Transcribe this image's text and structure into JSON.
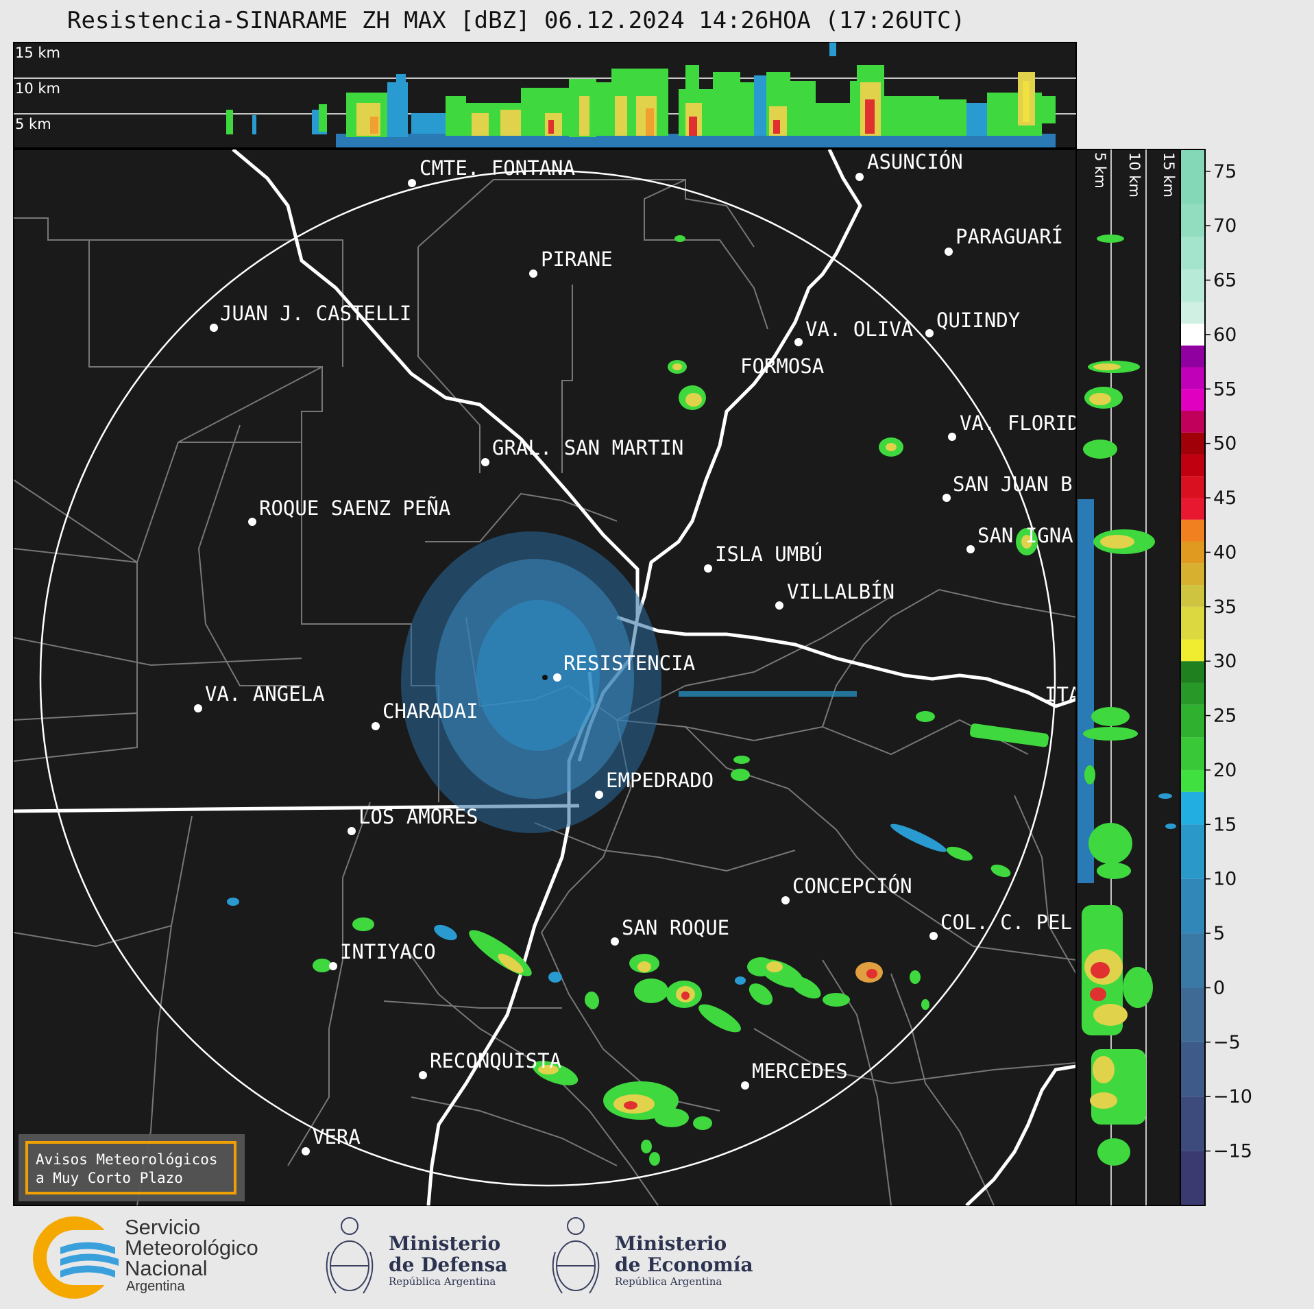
{
  "title": "Resistencia-SINARAME ZH MAX [dBZ] 06.12.2024 14:26HOA (17:26UTC)",
  "cross_section_top": {
    "height_labels": [
      "15 km",
      "10 km",
      "5 km"
    ]
  },
  "cross_section_side": {
    "height_labels": [
      "5 km",
      "10 km",
      "15 km"
    ]
  },
  "colorbar": {
    "ticks": [
      "75",
      "70",
      "65",
      "60",
      "55",
      "50",
      "45",
      "40",
      "35",
      "30",
      "25",
      "20",
      "15",
      "10",
      "5",
      "0",
      "−5",
      "−10",
      "−15"
    ]
  },
  "cities": [
    {
      "name": "CMTE. FONTANA"
    },
    {
      "name": "ASUNCIÓN"
    },
    {
      "name": "PARAGUARÍ"
    },
    {
      "name": "PIRANE"
    },
    {
      "name": "JUAN J. CASTELLI"
    },
    {
      "name": "VA. OLIVA"
    },
    {
      "name": "QUIINDY"
    },
    {
      "name": "FORMOSA"
    },
    {
      "name": "VA. FLORIDA"
    },
    {
      "name": "GRAL. SAN MARTIN"
    },
    {
      "name": "SAN JUAN B"
    },
    {
      "name": "ROQUE SAENZ PEÑA"
    },
    {
      "name": "SAN IGNA"
    },
    {
      "name": "ISLA UMBÚ"
    },
    {
      "name": "VILLALBÍN"
    },
    {
      "name": "RESISTENCIA"
    },
    {
      "name": "VA. ANGELA"
    },
    {
      "name": "CHARADAI"
    },
    {
      "name": "ITA"
    },
    {
      "name": "EMPEDRADO"
    },
    {
      "name": "LOS AMORES"
    },
    {
      "name": "CONCEPCIÓN"
    },
    {
      "name": "SAN ROQUE"
    },
    {
      "name": "COL. C. PEL"
    },
    {
      "name": "INTIYACO"
    },
    {
      "name": "RECONQUISTA"
    },
    {
      "name": "MERCEDES"
    },
    {
      "name": "VERA"
    }
  ],
  "warning_box": {
    "line1": "Avisos Meteorológicos",
    "line2": "a Muy Corto Plazo"
  },
  "logos": {
    "smn": {
      "line1": "Servicio",
      "line2": "Meteorológico",
      "line3": "Nacional",
      "line4": "Argentina"
    },
    "defensa": {
      "title1": "Ministerio",
      "title2": "de Defensa",
      "sub": "República Argentina"
    },
    "economia": {
      "title1": "Ministerio",
      "title2": "de Economía",
      "sub": "República Argentina"
    }
  },
  "colors": {
    "map_bg": "#1a1a1a",
    "panel_bg": "#e8e8e8",
    "warning_border": "#f0a000",
    "smn_orange": "#f5a800",
    "smn_blue": "#3aa0dc"
  }
}
